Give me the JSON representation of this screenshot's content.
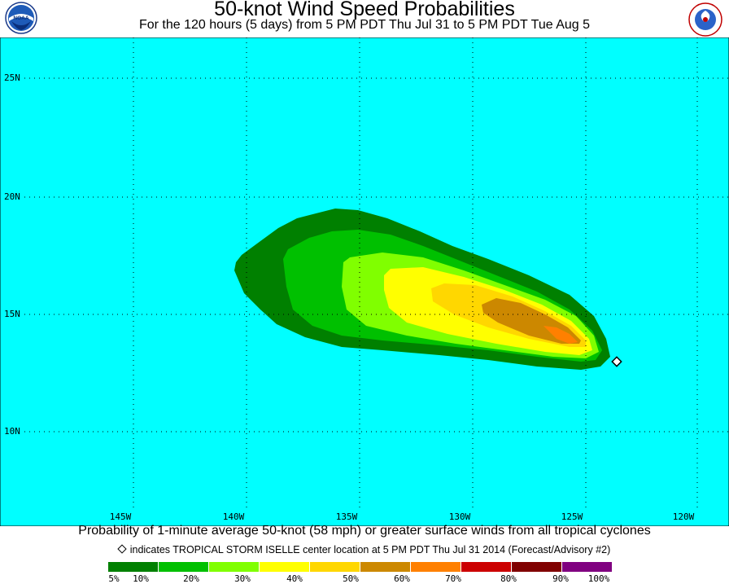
{
  "header": {
    "title": "50-knot Wind Speed Probabilities",
    "subtitle": "For the 120 hours (5 days) from 5 PM PDT Thu Jul 31 to 5 PM PDT Tue Aug 5",
    "logo_left_text": "NOAA",
    "logo_right_text": "NATIONAL WEATHER SERVICE"
  },
  "map": {
    "background_color": "#00ffff",
    "lat_labels": [
      "25N",
      "20N",
      "15N",
      "10N"
    ],
    "lon_labels": [
      "145W",
      "140W",
      "135W",
      "130W",
      "125W",
      "120W"
    ],
    "storm_marker_icon": "diamond-icon",
    "probability_colors": {
      "p5": "#008000",
      "p10": "#00c000",
      "p20": "#80ff00",
      "p30": "#ffff00",
      "p40": "#ffd700",
      "p50": "#cc8800",
      "p60": "#ff8000",
      "p70": "#cc0000",
      "p80": "#800000",
      "p90": "#800080"
    }
  },
  "footer": {
    "caption": "Probability of 1-minute average 50-knot (58 mph) or greater surface winds from all tropical cyclones",
    "storm_note": "indicates TROPICAL STORM ISELLE center location at 5 PM PDT Thu Jul 31 2014 (Forecast/Advisory #2)",
    "legend": {
      "colors": [
        "#008000",
        "#00c000",
        "#80ff00",
        "#ffff00",
        "#ffd700",
        "#cc8800",
        "#ff8000",
        "#cc0000",
        "#800000",
        "#800080"
      ],
      "labels": [
        "5%",
        "10%",
        "20%",
        "30%",
        "40%",
        "50%",
        "60%",
        "70%",
        "80%",
        "90%",
        "100%"
      ]
    }
  }
}
